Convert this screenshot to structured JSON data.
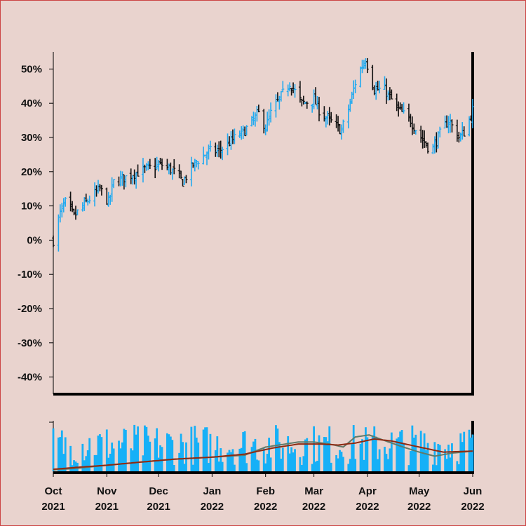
{
  "colors": {
    "background": "#e9d3ce",
    "border": "#cc4444",
    "up": "#22aaf0",
    "down": "#111111",
    "volume": "#16b0f7",
    "ma_short": "#607a6a",
    "ma_long": "#8e2a12",
    "axis": "#000000"
  },
  "chart_data": {
    "type": "ohlc_with_volume",
    "price_panel": {
      "y_unit": "% change",
      "ylim": [
        -45,
        55
      ],
      "y_ticks": [
        50,
        40,
        30,
        20,
        10,
        0,
        -10,
        -20,
        -30,
        -40
      ],
      "y_tick_labels": [
        "50%",
        "40%",
        "30%",
        "20%",
        "10%",
        "0%",
        "-10%",
        "-20%",
        "-30%",
        "-40%"
      ],
      "anchors": [
        [
          "2021-10-01",
          0
        ],
        [
          "2021-10-05",
          8
        ],
        [
          "2021-10-08",
          11
        ],
        [
          "2021-10-13",
          7
        ],
        [
          "2021-10-20",
          11
        ],
        [
          "2021-10-28",
          15
        ],
        [
          "2021-11-02",
          11
        ],
        [
          "2021-11-05",
          17
        ],
        [
          "2021-11-15",
          19
        ],
        [
          "2021-11-25",
          21
        ],
        [
          "2021-12-03",
          22
        ],
        [
          "2021-12-10",
          20
        ],
        [
          "2021-12-15",
          17
        ],
        [
          "2021-12-21",
          22
        ],
        [
          "2021-12-30",
          26
        ],
        [
          "2022-01-05",
          26
        ],
        [
          "2022-01-12",
          29
        ],
        [
          "2022-01-20",
          32
        ],
        [
          "2022-01-28",
          37
        ],
        [
          "2022-02-01",
          33
        ],
        [
          "2022-02-04",
          37
        ],
        [
          "2022-02-10",
          42
        ],
        [
          "2022-02-15",
          46
        ],
        [
          "2022-02-22",
          40
        ],
        [
          "2022-03-01",
          41
        ],
        [
          "2022-03-05",
          37
        ],
        [
          "2022-03-10",
          35
        ],
        [
          "2022-03-17",
          32
        ],
        [
          "2022-03-22",
          40
        ],
        [
          "2022-03-26",
          48
        ],
        [
          "2022-03-31",
          53
        ],
        [
          "2022-04-05",
          44
        ],
        [
          "2022-04-11",
          44
        ],
        [
          "2022-04-19",
          38
        ],
        [
          "2022-04-26",
          35
        ],
        [
          "2022-05-02",
          30
        ],
        [
          "2022-05-08",
          26
        ],
        [
          "2022-05-13",
          31
        ],
        [
          "2022-05-18",
          35
        ],
        [
          "2022-05-24",
          30
        ],
        [
          "2022-05-28",
          32
        ],
        [
          "2022-06-01",
          38
        ]
      ]
    },
    "volume_panel": {
      "bars": "daily volume",
      "moving_averages": [
        {
          "color": "#607a6a",
          "anchors": [
            [
              "2021-10-01",
              0.03
            ],
            [
              "2021-10-15",
              0.06
            ],
            [
              "2021-11-01",
              0.12
            ],
            [
              "2021-11-20",
              0.18
            ],
            [
              "2021-12-10",
              0.24
            ],
            [
              "2022-01-01",
              0.28
            ],
            [
              "2022-01-20",
              0.32
            ],
            [
              "2022-02-01",
              0.48
            ],
            [
              "2022-02-20",
              0.58
            ],
            [
              "2022-03-01",
              0.58
            ],
            [
              "2022-03-10",
              0.54
            ],
            [
              "2022-03-18",
              0.48
            ],
            [
              "2022-03-25",
              0.68
            ],
            [
              "2022-04-02",
              0.72
            ],
            [
              "2022-04-10",
              0.62
            ],
            [
              "2022-04-20",
              0.5
            ],
            [
              "2022-05-01",
              0.38
            ],
            [
              "2022-05-10",
              0.3
            ],
            [
              "2022-05-20",
              0.36
            ],
            [
              "2022-06-01",
              0.4
            ]
          ]
        },
        {
          "color": "#8e2a12",
          "anchors": [
            [
              "2021-10-01",
              0.04
            ],
            [
              "2021-10-15",
              0.08
            ],
            [
              "2021-11-01",
              0.12
            ],
            [
              "2021-11-20",
              0.18
            ],
            [
              "2021-12-10",
              0.24
            ],
            [
              "2022-01-01",
              0.28
            ],
            [
              "2022-01-20",
              0.34
            ],
            [
              "2022-02-05",
              0.46
            ],
            [
              "2022-02-20",
              0.54
            ],
            [
              "2022-03-05",
              0.54
            ],
            [
              "2022-03-15",
              0.52
            ],
            [
              "2022-03-25",
              0.56
            ],
            [
              "2022-04-05",
              0.64
            ],
            [
              "2022-04-15",
              0.6
            ],
            [
              "2022-05-01",
              0.48
            ],
            [
              "2022-05-15",
              0.38
            ],
            [
              "2022-06-01",
              0.4
            ]
          ]
        }
      ]
    },
    "x_range": [
      "2021-10-01",
      "2022-06-01"
    ],
    "x_ticks": [
      {
        "date": "2021-10-01",
        "month": "Oct",
        "year": "2021"
      },
      {
        "date": "2021-11-01",
        "month": "Nov",
        "year": "2021"
      },
      {
        "date": "2021-12-01",
        "month": "Dec",
        "year": "2021"
      },
      {
        "date": "2022-01-01",
        "month": "Jan",
        "year": "2022"
      },
      {
        "date": "2022-02-01",
        "month": "Feb",
        "year": "2022"
      },
      {
        "date": "2022-03-01",
        "month": "Mar",
        "year": "2022"
      },
      {
        "date": "2022-04-01",
        "month": "Apr",
        "year": "2022"
      },
      {
        "date": "2022-05-01",
        "month": "May",
        "year": "2022"
      },
      {
        "date": "2022-06-01",
        "month": "Jun",
        "year": "2022"
      }
    ]
  }
}
